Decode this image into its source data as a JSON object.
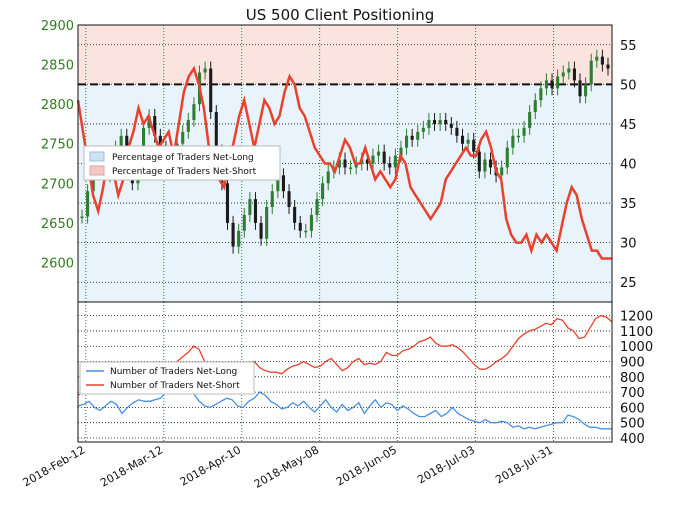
{
  "chart_data": [
    {
      "type": "line",
      "title": "US 500 Client Positioning",
      "panel": "price-and-percentage",
      "y_left": {
        "ticks": [
          2600,
          2650,
          2700,
          2750,
          2800,
          2850,
          2900
        ],
        "range": [
          2550,
          2900
        ]
      },
      "y_right": {
        "ticks": [
          25,
          30,
          35,
          40,
          45,
          50,
          55
        ],
        "range": [
          22.5,
          57.5
        ]
      },
      "x": {
        "ticks": [
          "2018-Feb-12",
          "2018-Mar-12",
          "2018-Apr-10",
          "2018-May-08",
          "2018-Jun-05",
          "2018-Jul-03",
          "2018-Jul-31"
        ]
      },
      "legend": [
        {
          "name": "Percentage of Traders Net-Long",
          "color": "#cfe2f3"
        },
        {
          "name": "Percentage of Traders Net-Short",
          "color": "#f4c7c3"
        }
      ],
      "reference_line_right": 50,
      "series": [
        {
          "name": "Percentage of Traders Net-Short",
          "color": "#e8412e",
          "values": [
            48,
            44,
            40,
            36,
            34,
            37,
            41,
            39,
            36,
            38,
            42,
            44,
            47,
            45,
            46,
            44,
            42,
            43,
            44,
            41,
            45,
            49,
            51,
            52,
            50,
            47,
            42,
            40,
            38,
            37,
            40,
            43,
            46,
            48,
            45,
            42,
            45,
            48,
            47,
            45,
            46,
            49,
            51,
            50,
            47,
            46,
            44,
            42,
            41,
            40,
            40,
            39,
            41,
            43,
            42,
            40,
            40,
            42,
            40,
            38,
            39,
            38,
            37,
            38,
            41,
            40,
            37,
            36,
            35,
            34,
            33,
            34,
            35,
            38,
            39,
            40,
            41,
            42,
            41,
            41,
            43,
            44,
            42,
            39,
            38,
            33,
            31,
            30,
            30,
            31,
            29,
            31,
            30,
            31,
            30,
            29,
            32,
            35,
            37,
            36,
            33,
            31,
            29,
            29,
            28,
            28,
            28
          ]
        },
        {
          "name": "US 500",
          "color": "#2e7d32",
          "values": [
            2658,
            2690,
            2720,
            2735,
            2710,
            2725,
            2745,
            2760,
            2720,
            2700,
            2735,
            2770,
            2785,
            2760,
            2745,
            2740,
            2730,
            2750,
            2765,
            2780,
            2800,
            2840,
            2845,
            2790,
            2740,
            2700,
            2650,
            2620,
            2640,
            2660,
            2680,
            2650,
            2630,
            2670,
            2690,
            2710,
            2690,
            2670,
            2650,
            2640,
            2640,
            2660,
            2680,
            2700,
            2715,
            2720,
            2730,
            2720,
            2720,
            2725,
            2730,
            2725,
            2735,
            2740,
            2725,
            2720,
            2735,
            2745,
            2760,
            2755,
            2765,
            2770,
            2780,
            2775,
            2780,
            2775,
            2770,
            2760,
            2750,
            2755,
            2740,
            2715,
            2730,
            2720,
            2710,
            2720,
            2745,
            2760,
            2760,
            2770,
            2790,
            2805,
            2820,
            2830,
            2820,
            2835,
            2840,
            2845,
            2830,
            2810,
            2825,
            2855,
            2860,
            2850,
            2845
          ]
        }
      ]
    },
    {
      "type": "line",
      "panel": "trader-counts",
      "y_right": {
        "ticks": [
          400,
          500,
          600,
          700,
          800,
          900,
          1000,
          1100,
          1200
        ],
        "range": [
          400,
          1250
        ]
      },
      "legend": [
        {
          "name": "Number of Traders Net-Long",
          "color": "#4a90e2"
        },
        {
          "name": "Number of Traders Net-Short",
          "color": "#e8412e"
        }
      ],
      "series": [
        {
          "name": "Number of Traders Net-Long",
          "color": "#4a90e2",
          "values": [
            610,
            620,
            640,
            600,
            580,
            610,
            640,
            620,
            560,
            600,
            630,
            650,
            640,
            640,
            650,
            660,
            700,
            720,
            740,
            710,
            700,
            690,
            640,
            610,
            600,
            620,
            640,
            660,
            650,
            610,
            600,
            640,
            660,
            700,
            680,
            640,
            620,
            590,
            600,
            630,
            610,
            640,
            600,
            570,
            610,
            650,
            600,
            570,
            620,
            580,
            600,
            630,
            560,
            610,
            650,
            600,
            630,
            620,
            580,
            610,
            590,
            560,
            540,
            540,
            560,
            580,
            540,
            560,
            600,
            560,
            540,
            520,
            510,
            500,
            520,
            500,
            500,
            510,
            500,
            470,
            480,
            460,
            470,
            460,
            470,
            480,
            490,
            500,
            500,
            550,
            540,
            520,
            490,
            470,
            470,
            460,
            460,
            460
          ]
        },
        {
          "name": "Number of Traders Net-Short",
          "color": "#e8412e",
          "values": [
            680,
            700,
            710,
            730,
            740,
            760,
            790,
            770,
            760,
            780,
            800,
            820,
            820,
            840,
            860,
            870,
            880,
            870,
            900,
            930,
            960,
            1000,
            980,
            900,
            860,
            840,
            820,
            800,
            810,
            820,
            830,
            880,
            900,
            860,
            840,
            830,
            830,
            820,
            850,
            870,
            880,
            900,
            880,
            860,
            870,
            900,
            920,
            880,
            840,
            860,
            900,
            920,
            880,
            890,
            880,
            900,
            960,
            940,
            940,
            970,
            980,
            1000,
            1030,
            1040,
            1060,
            1020,
            1000,
            1000,
            1010,
            990,
            960,
            920,
            880,
            850,
            850,
            870,
            900,
            920,
            950,
            1000,
            1050,
            1080,
            1100,
            1110,
            1130,
            1150,
            1140,
            1180,
            1170,
            1120,
            1100,
            1050,
            1060,
            1120,
            1180,
            1200,
            1190,
            1160
          ]
        }
      ]
    }
  ]
}
